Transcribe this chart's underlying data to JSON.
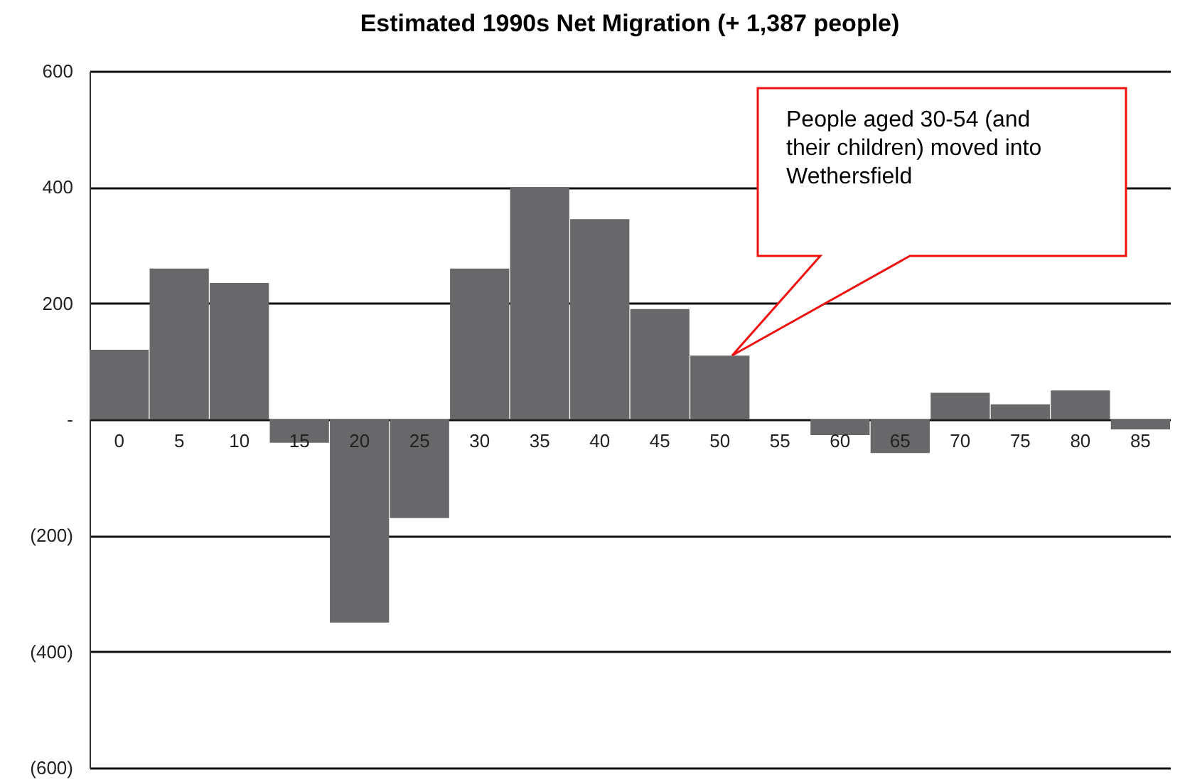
{
  "chart_data": {
    "type": "bar",
    "title": "Estimated 1990s Net Migration (+ 1,387 people)",
    "categories": [
      "0",
      "5",
      "10",
      "15",
      "20",
      "25",
      "30",
      "35",
      "40",
      "45",
      "50",
      "55",
      "60",
      "65",
      "70",
      "75",
      "80",
      "85"
    ],
    "values": [
      120,
      260,
      235,
      -40,
      -350,
      -170,
      260,
      400,
      345,
      190,
      110,
      0,
      -27,
      -58,
      46,
      26,
      50,
      -17
    ],
    "color": "#68686b",
    "ylim": [
      -600,
      600
    ],
    "yticks": [
      600,
      400,
      200,
      {
        "value": 0,
        "label": "-"
      },
      {
        "value": -200,
        "label": "(200)"
      },
      {
        "value": -400,
        "label": "(400)"
      },
      {
        "value": -600,
        "label": "(600)"
      }
    ],
    "grid": "y",
    "annotations": [
      "People aged 30-54 (and their children) moved into Wethersfield"
    ]
  }
}
